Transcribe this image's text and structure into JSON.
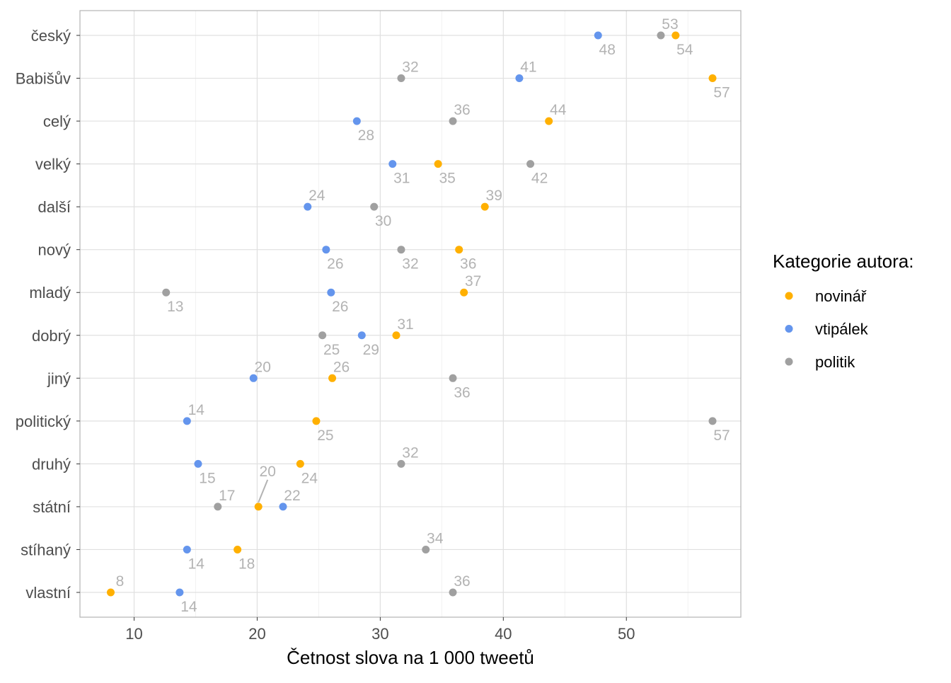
{
  "chart_data": {
    "type": "scatter",
    "xlabel": "Četnost slova na 1 000 tweetů",
    "ylabel": "",
    "xlim": [
      5.6,
      59.3
    ],
    "x_ticks": [
      10,
      20,
      30,
      40,
      50
    ],
    "grid": true,
    "legend": {
      "title": "Kategorie autora:",
      "placement": "right",
      "entries": [
        "novinář",
        "vtipálek",
        "politik"
      ]
    },
    "colors": {
      "novinář": "#FFB000",
      "vtipálek": "#6495ED",
      "politik": "#A0A0A0",
      "label": "#B3B3B3"
    },
    "categories": [
      "český",
      "Babišův",
      "celý",
      "velký",
      "další",
      "nový",
      "mladý",
      "dobrý",
      "jiný",
      "politický",
      "druhý",
      "státní",
      "stíhaný",
      "vlastní"
    ],
    "points": [
      {
        "word": "český",
        "series": "vtipálek",
        "value": 47.7,
        "label": "48",
        "pos": "below"
      },
      {
        "word": "český",
        "series": "politik",
        "value": 52.8,
        "label": "53",
        "pos": "above"
      },
      {
        "word": "český",
        "series": "novinář",
        "value": 54.0,
        "label": "54",
        "pos": "below"
      },
      {
        "word": "Babišův",
        "series": "politik",
        "value": 31.7,
        "label": "32",
        "pos": "above"
      },
      {
        "word": "Babišův",
        "series": "vtipálek",
        "value": 41.3,
        "label": "41",
        "pos": "above"
      },
      {
        "word": "Babišův",
        "series": "novinář",
        "value": 57.0,
        "label": "57",
        "pos": "below"
      },
      {
        "word": "celý",
        "series": "vtipálek",
        "value": 28.1,
        "label": "28",
        "pos": "below"
      },
      {
        "word": "celý",
        "series": "politik",
        "value": 35.9,
        "label": "36",
        "pos": "above"
      },
      {
        "word": "celý",
        "series": "novinář",
        "value": 43.7,
        "label": "44",
        "pos": "above"
      },
      {
        "word": "velký",
        "series": "vtipálek",
        "value": 31.0,
        "label": "31",
        "pos": "below"
      },
      {
        "word": "velký",
        "series": "novinář",
        "value": 34.7,
        "label": "35",
        "pos": "below"
      },
      {
        "word": "velký",
        "series": "politik",
        "value": 42.2,
        "label": "42",
        "pos": "below"
      },
      {
        "word": "další",
        "series": "vtipálek",
        "value": 24.1,
        "label": "24",
        "pos": "above"
      },
      {
        "word": "další",
        "series": "politik",
        "value": 29.5,
        "label": "30",
        "pos": "below"
      },
      {
        "word": "další",
        "series": "novinář",
        "value": 38.5,
        "label": "39",
        "pos": "above"
      },
      {
        "word": "nový",
        "series": "vtipálek",
        "value": 25.6,
        "label": "26",
        "pos": "below"
      },
      {
        "word": "nový",
        "series": "politik",
        "value": 31.7,
        "label": "32",
        "pos": "below"
      },
      {
        "word": "nový",
        "series": "novinář",
        "value": 36.4,
        "label": "36",
        "pos": "below"
      },
      {
        "word": "mladý",
        "series": "politik",
        "value": 12.6,
        "label": "13",
        "pos": "below"
      },
      {
        "word": "mladý",
        "series": "vtipálek",
        "value": 26.0,
        "label": "26",
        "pos": "below"
      },
      {
        "word": "mladý",
        "series": "novinář",
        "value": 36.8,
        "label": "37",
        "pos": "above"
      },
      {
        "word": "dobrý",
        "series": "politik",
        "value": 25.3,
        "label": "25",
        "pos": "below"
      },
      {
        "word": "dobrý",
        "series": "vtipálek",
        "value": 28.5,
        "label": "29",
        "pos": "below"
      },
      {
        "word": "dobrý",
        "series": "novinář",
        "value": 31.3,
        "label": "31",
        "pos": "above"
      },
      {
        "word": "jiný",
        "series": "vtipálek",
        "value": 19.7,
        "label": "20",
        "pos": "above"
      },
      {
        "word": "jiný",
        "series": "novinář",
        "value": 26.1,
        "label": "26",
        "pos": "above"
      },
      {
        "word": "jiný",
        "series": "politik",
        "value": 35.9,
        "label": "36",
        "pos": "below"
      },
      {
        "word": "politický",
        "series": "vtipálek",
        "value": 14.3,
        "label": "14",
        "pos": "above"
      },
      {
        "word": "politický",
        "series": "novinář",
        "value": 24.8,
        "label": "25",
        "pos": "below"
      },
      {
        "word": "politický",
        "series": "politik",
        "value": 57.0,
        "label": "57",
        "pos": "below"
      },
      {
        "word": "druhý",
        "series": "vtipálek",
        "value": 15.2,
        "label": "15",
        "pos": "below"
      },
      {
        "word": "druhý",
        "series": "novinář",
        "value": 23.5,
        "label": "24",
        "pos": "below"
      },
      {
        "word": "druhý",
        "series": "politik",
        "value": 31.7,
        "label": "32",
        "pos": "above"
      },
      {
        "word": "státní",
        "series": "politik",
        "value": 16.8,
        "label": "17",
        "pos": "above"
      },
      {
        "word": "státní",
        "series": "novinář",
        "value": 20.1,
        "label": "20",
        "pos": "leader"
      },
      {
        "word": "státní",
        "series": "vtipálek",
        "value": 22.1,
        "label": "22",
        "pos": "above"
      },
      {
        "word": "stíhaný",
        "series": "vtipálek",
        "value": 14.3,
        "label": "14",
        "pos": "below"
      },
      {
        "word": "stíhaný",
        "series": "novinář",
        "value": 18.4,
        "label": "18",
        "pos": "below"
      },
      {
        "word": "stíhaný",
        "series": "politik",
        "value": 33.7,
        "label": "34",
        "pos": "above"
      },
      {
        "word": "vlastní",
        "series": "novinář",
        "value": 8.1,
        "label": "8",
        "pos": "above"
      },
      {
        "word": "vlastní",
        "series": "vtipálek",
        "value": 13.7,
        "label": "14",
        "pos": "below"
      },
      {
        "word": "vlastní",
        "series": "politik",
        "value": 35.9,
        "label": "36",
        "pos": "above"
      }
    ]
  }
}
